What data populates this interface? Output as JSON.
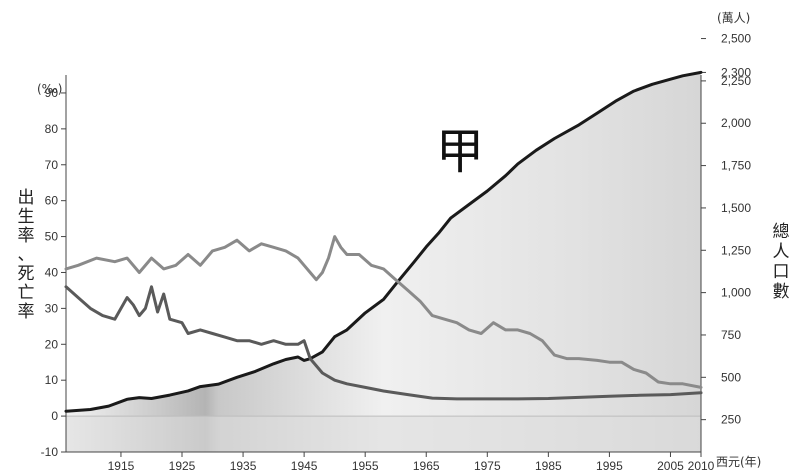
{
  "chart_data": {
    "type": "line",
    "annotation": "甲",
    "y_left": {
      "unit": "(‰)",
      "label": "出生率、死亡率",
      "ticks": [
        -10,
        0,
        10,
        20,
        30,
        40,
        50,
        60,
        70,
        80,
        90
      ],
      "range": [
        -10,
        95
      ]
    },
    "y_right": {
      "unit": "(萬人)",
      "label": "總人口數",
      "ticks": [
        250,
        500,
        750,
        1000,
        1250,
        1500,
        1750,
        2000,
        2250,
        2300,
        2500
      ],
      "range": [
        0,
        2580
      ]
    },
    "x_axis": {
      "unit": "西元(年)",
      "ticks": [
        1915,
        1925,
        1935,
        1945,
        1955,
        1965,
        1975,
        1985,
        1995,
        2005,
        2010
      ],
      "range": [
        1906,
        2010
      ]
    },
    "series": [
      {
        "axis": "right",
        "color": "#1a1a1a",
        "points": [
          [
            1906,
            300
          ],
          [
            1910,
            310
          ],
          [
            1913,
            330
          ],
          [
            1916,
            370
          ],
          [
            1918,
            380
          ],
          [
            1920,
            375
          ],
          [
            1923,
            395
          ],
          [
            1926,
            420
          ],
          [
            1928,
            445
          ],
          [
            1931,
            460
          ],
          [
            1934,
            500
          ],
          [
            1937,
            535
          ],
          [
            1940,
            580
          ],
          [
            1942,
            605
          ],
          [
            1944,
            620
          ],
          [
            1945,
            600
          ],
          [
            1946,
            610
          ],
          [
            1948,
            650
          ],
          [
            1950,
            740
          ],
          [
            1952,
            780
          ],
          [
            1955,
            880
          ],
          [
            1958,
            960
          ],
          [
            1960,
            1050
          ],
          [
            1963,
            1180
          ],
          [
            1965,
            1270
          ],
          [
            1967,
            1350
          ],
          [
            1969,
            1440
          ],
          [
            1972,
            1520
          ],
          [
            1975,
            1600
          ],
          [
            1978,
            1690
          ],
          [
            1980,
            1760
          ],
          [
            1983,
            1840
          ],
          [
            1986,
            1910
          ],
          [
            1990,
            1990
          ],
          [
            1993,
            2060
          ],
          [
            1996,
            2130
          ],
          [
            1999,
            2190
          ],
          [
            2002,
            2230
          ],
          [
            2005,
            2260
          ],
          [
            2007,
            2280
          ],
          [
            2010,
            2300
          ]
        ]
      },
      {
        "axis": "left",
        "color": "#8a8a8a",
        "points": [
          [
            1906,
            41
          ],
          [
            1908,
            42
          ],
          [
            1911,
            44
          ],
          [
            1914,
            43
          ],
          [
            1916,
            44
          ],
          [
            1918,
            40
          ],
          [
            1920,
            44
          ],
          [
            1922,
            41
          ],
          [
            1924,
            42
          ],
          [
            1926,
            45
          ],
          [
            1928,
            42
          ],
          [
            1930,
            46
          ],
          [
            1932,
            47
          ],
          [
            1934,
            49
          ],
          [
            1936,
            46
          ],
          [
            1938,
            48
          ],
          [
            1940,
            47
          ],
          [
            1942,
            46
          ],
          [
            1944,
            44
          ],
          [
            1945,
            42
          ],
          [
            1946,
            40
          ],
          [
            1947,
            38
          ],
          [
            1948,
            40
          ],
          [
            1949,
            44
          ],
          [
            1950,
            50
          ],
          [
            1951,
            47
          ],
          [
            1952,
            45
          ],
          [
            1954,
            45
          ],
          [
            1956,
            42
          ],
          [
            1958,
            41
          ],
          [
            1960,
            38
          ],
          [
            1962,
            35
          ],
          [
            1964,
            32
          ],
          [
            1966,
            28
          ],
          [
            1968,
            27
          ],
          [
            1970,
            26
          ],
          [
            1972,
            24
          ],
          [
            1974,
            23
          ],
          [
            1976,
            26
          ],
          [
            1978,
            24
          ],
          [
            1980,
            24
          ],
          [
            1982,
            23
          ],
          [
            1984,
            21
          ],
          [
            1986,
            17
          ],
          [
            1988,
            16
          ],
          [
            1990,
            16
          ],
          [
            1993,
            15.5
          ],
          [
            1995,
            15
          ],
          [
            1997,
            15
          ],
          [
            1999,
            13
          ],
          [
            2001,
            12
          ],
          [
            2003,
            9.5
          ],
          [
            2005,
            9
          ],
          [
            2007,
            9
          ],
          [
            2010,
            8
          ]
        ]
      },
      {
        "axis": "left",
        "color": "#5a5a5a",
        "points": [
          [
            1906,
            36
          ],
          [
            1908,
            33
          ],
          [
            1910,
            30
          ],
          [
            1912,
            28
          ],
          [
            1914,
            27
          ],
          [
            1916,
            33
          ],
          [
            1917,
            31
          ],
          [
            1918,
            28
          ],
          [
            1919,
            30
          ],
          [
            1920,
            36
          ],
          [
            1921,
            29
          ],
          [
            1922,
            34
          ],
          [
            1923,
            27
          ],
          [
            1925,
            26
          ],
          [
            1926,
            23
          ],
          [
            1928,
            24
          ],
          [
            1930,
            23
          ],
          [
            1932,
            22
          ],
          [
            1934,
            21
          ],
          [
            1936,
            21
          ],
          [
            1938,
            20
          ],
          [
            1940,
            21
          ],
          [
            1942,
            20
          ],
          [
            1944,
            20
          ],
          [
            1945,
            21
          ],
          [
            1946,
            16
          ],
          [
            1948,
            12
          ],
          [
            1950,
            10
          ],
          [
            1952,
            9
          ],
          [
            1955,
            8
          ],
          [
            1958,
            7
          ],
          [
            1962,
            6
          ],
          [
            1966,
            5
          ],
          [
            1970,
            4.8
          ],
          [
            1975,
            4.8
          ],
          [
            1980,
            4.8
          ],
          [
            1985,
            4.9
          ],
          [
            1990,
            5.2
          ],
          [
            1995,
            5.5
          ],
          [
            2000,
            5.8
          ],
          [
            2005,
            6
          ],
          [
            2010,
            6.5
          ]
        ]
      }
    ]
  }
}
